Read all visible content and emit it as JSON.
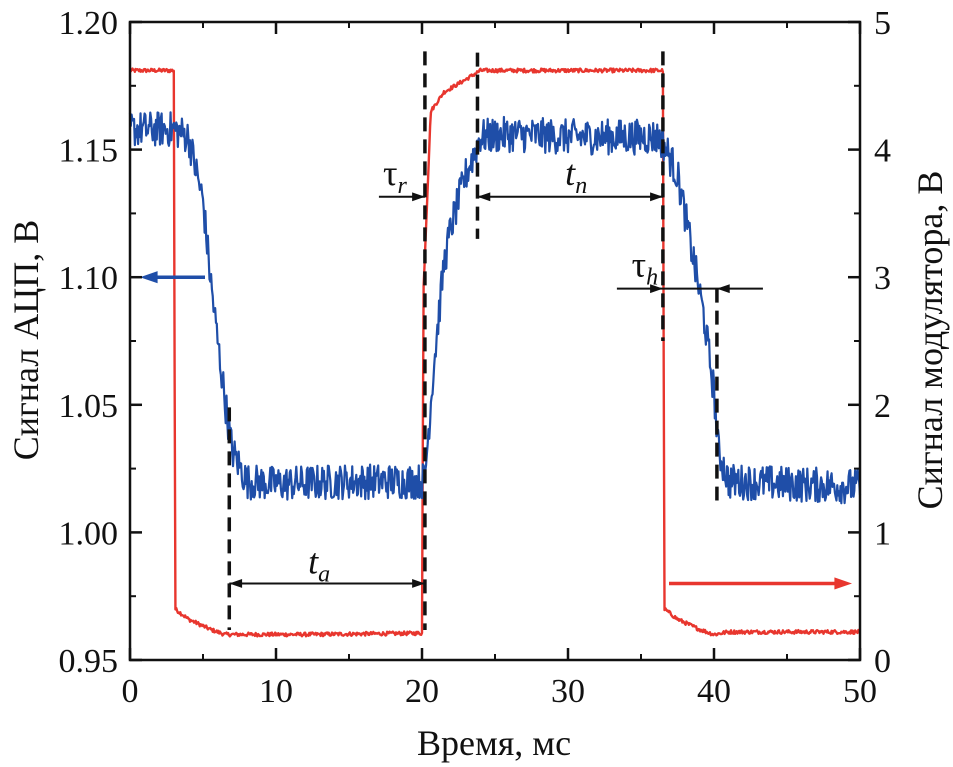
{
  "chart_data": {
    "type": "line",
    "title": "",
    "xlabel": "Время, мс",
    "ylabel_left": "Сигнал АЦП, В",
    "ylabel_right": "Сигнал модулятора, В",
    "xlim": [
      0,
      50
    ],
    "ylim_left": [
      0.95,
      1.2
    ],
    "ylim_right": [
      0,
      5
    ],
    "x_ticks": [
      "0",
      "10",
      "20",
      "30",
      "40",
      "50"
    ],
    "y_left_ticks": [
      "0.95",
      "1.00",
      "1.05",
      "1.10",
      "1.15",
      "1.20"
    ],
    "y_right_ticks": [
      "0",
      "1",
      "2",
      "3",
      "4",
      "5"
    ],
    "grid": false,
    "series": [
      {
        "name": "Сигнал АЦП",
        "axis": "left",
        "color": "#1f4ea8",
        "x": [
          0,
          3,
          4,
          5,
          5.5,
          6,
          6.5,
          7,
          8,
          10,
          15,
          20,
          20.2,
          20.8,
          21.5,
          22,
          23,
          24,
          26,
          30,
          36,
          36.5,
          37.5,
          38.5,
          39.3,
          40,
          40.3,
          41,
          45,
          50
        ],
        "y": [
          1.158,
          1.158,
          1.155,
          1.13,
          1.1,
          1.075,
          1.052,
          1.032,
          1.02,
          1.019,
          1.02,
          1.02,
          1.022,
          1.065,
          1.105,
          1.12,
          1.14,
          1.155,
          1.156,
          1.155,
          1.155,
          1.153,
          1.14,
          1.11,
          1.085,
          1.055,
          1.032,
          1.02,
          1.019,
          1.018
        ],
        "noise_amplitude": 0.007
      },
      {
        "name": "Сигнал модулятора",
        "axis": "right",
        "color": "#e8362e",
        "x": [
          0,
          3,
          3.1,
          4,
          5.5,
          6.5,
          7.5,
          12,
          20,
          20.1,
          20.6,
          21.5,
          23,
          24,
          30,
          36.5,
          36.6,
          37.5,
          39,
          40,
          41,
          50
        ],
        "y": [
          4.62,
          4.62,
          0.4,
          0.32,
          0.24,
          0.2,
          0.2,
          0.2,
          0.21,
          2.9,
          4.3,
          4.45,
          4.55,
          4.62,
          4.62,
          4.62,
          0.4,
          0.32,
          0.24,
          0.2,
          0.22,
          0.22
        ],
        "noise_amplitude": 0.015
      }
    ],
    "markers_x": [
      6.8,
      20.2,
      23.8,
      36.5,
      40.2
    ],
    "annotations": [
      {
        "text": "t",
        "sub": "a",
        "x1": 6.8,
        "x2": 20.2,
        "y": 0.98
      },
      {
        "text": "t",
        "sub": "n",
        "x1": 23.8,
        "x2": 36.5,
        "y": 1.1315
      },
      {
        "text": "τ",
        "sub": "r",
        "x_at": 20.2,
        "y": 1.1315
      },
      {
        "text": "τ",
        "sub": "h",
        "x1": 36.5,
        "x2": 40.2,
        "y": 1.0955
      }
    ],
    "arrows": [
      {
        "direction": "left",
        "meaning": "left axis",
        "color": "#1f4ea8"
      },
      {
        "direction": "right",
        "meaning": "right axis",
        "color": "#e8362e"
      }
    ]
  }
}
